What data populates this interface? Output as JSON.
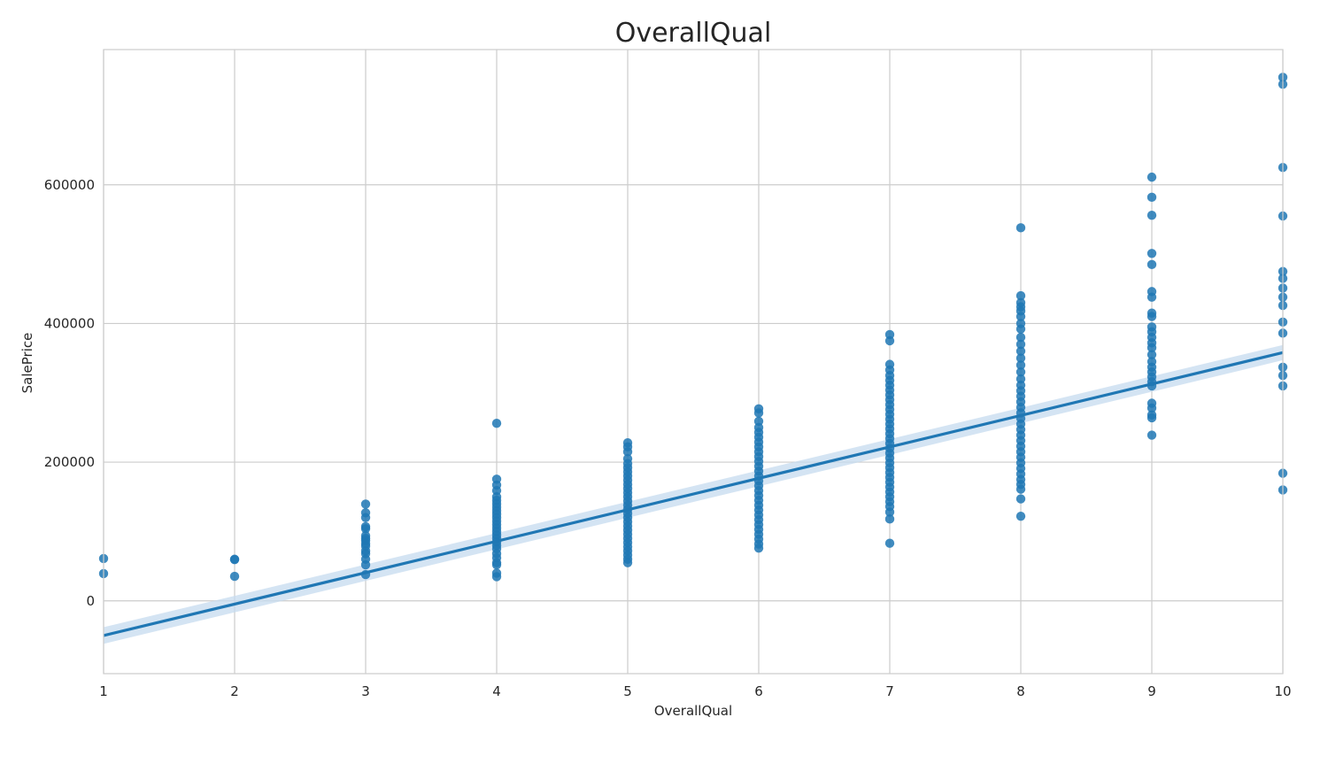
{
  "chart_data": {
    "type": "scatter",
    "title": "OverallQual",
    "xlabel": "OverallQual",
    "ylabel": "SalePrice",
    "xlim": [
      1,
      10
    ],
    "ylim": [
      -105000,
      795000
    ],
    "xticks": [
      "1",
      "2",
      "3",
      "4",
      "5",
      "6",
      "7",
      "8",
      "9",
      "10"
    ],
    "yticks": [
      "0",
      "200000",
      "400000",
      "600000"
    ],
    "grid": true,
    "colors": {
      "points": "#1f77b4",
      "line": "#1f77b4",
      "band": "#c6dbef"
    },
    "regression": {
      "x": [
        1,
        10
      ],
      "y": [
        -50000,
        358000
      ],
      "ci_halfwidth": [
        12000,
        11000
      ]
    },
    "points": [
      {
        "x": 1,
        "y": 61000
      },
      {
        "x": 1,
        "y": 39300
      },
      {
        "x": 2,
        "y": 60000
      },
      {
        "x": 2,
        "y": 59500
      },
      {
        "x": 2,
        "y": 35300
      },
      {
        "x": 3,
        "y": 139600
      },
      {
        "x": 3,
        "y": 127000
      },
      {
        "x": 3,
        "y": 120000
      },
      {
        "x": 3,
        "y": 107000
      },
      {
        "x": 3,
        "y": 104000
      },
      {
        "x": 3,
        "y": 94000
      },
      {
        "x": 3,
        "y": 90000
      },
      {
        "x": 3,
        "y": 87000
      },
      {
        "x": 3,
        "y": 82500
      },
      {
        "x": 3,
        "y": 79000
      },
      {
        "x": 3,
        "y": 72000
      },
      {
        "x": 3,
        "y": 68000
      },
      {
        "x": 3,
        "y": 60000
      },
      {
        "x": 3,
        "y": 52000
      },
      {
        "x": 3,
        "y": 37900
      },
      {
        "x": 4,
        "y": 256000
      },
      {
        "x": 4,
        "y": 175500
      },
      {
        "x": 4,
        "y": 167000
      },
      {
        "x": 4,
        "y": 159000
      },
      {
        "x": 4,
        "y": 150000
      },
      {
        "x": 4,
        "y": 145000
      },
      {
        "x": 4,
        "y": 140000
      },
      {
        "x": 4,
        "y": 135000
      },
      {
        "x": 4,
        "y": 130000
      },
      {
        "x": 4,
        "y": 125000
      },
      {
        "x": 4,
        "y": 120000
      },
      {
        "x": 4,
        "y": 115000
      },
      {
        "x": 4,
        "y": 110000
      },
      {
        "x": 4,
        "y": 105000
      },
      {
        "x": 4,
        "y": 100000
      },
      {
        "x": 4,
        "y": 95000
      },
      {
        "x": 4,
        "y": 90000
      },
      {
        "x": 4,
        "y": 85000
      },
      {
        "x": 4,
        "y": 80000
      },
      {
        "x": 4,
        "y": 75000
      },
      {
        "x": 4,
        "y": 68000
      },
      {
        "x": 4,
        "y": 62000
      },
      {
        "x": 4,
        "y": 55000
      },
      {
        "x": 4,
        "y": 52000
      },
      {
        "x": 4,
        "y": 40000
      },
      {
        "x": 4,
        "y": 34900
      },
      {
        "x": 5,
        "y": 228000
      },
      {
        "x": 5,
        "y": 222000
      },
      {
        "x": 5,
        "y": 215000
      },
      {
        "x": 5,
        "y": 205000
      },
      {
        "x": 5,
        "y": 198000
      },
      {
        "x": 5,
        "y": 192000
      },
      {
        "x": 5,
        "y": 186000
      },
      {
        "x": 5,
        "y": 180000
      },
      {
        "x": 5,
        "y": 174000
      },
      {
        "x": 5,
        "y": 168000
      },
      {
        "x": 5,
        "y": 162000
      },
      {
        "x": 5,
        "y": 156000
      },
      {
        "x": 5,
        "y": 150000
      },
      {
        "x": 5,
        "y": 144000
      },
      {
        "x": 5,
        "y": 138000
      },
      {
        "x": 5,
        "y": 132000
      },
      {
        "x": 5,
        "y": 126000
      },
      {
        "x": 5,
        "y": 120000
      },
      {
        "x": 5,
        "y": 114000
      },
      {
        "x": 5,
        "y": 108000
      },
      {
        "x": 5,
        "y": 102000
      },
      {
        "x": 5,
        "y": 96000
      },
      {
        "x": 5,
        "y": 90000
      },
      {
        "x": 5,
        "y": 84000
      },
      {
        "x": 5,
        "y": 78000
      },
      {
        "x": 5,
        "y": 72000
      },
      {
        "x": 5,
        "y": 66000
      },
      {
        "x": 5,
        "y": 60000
      },
      {
        "x": 5,
        "y": 55000
      },
      {
        "x": 6,
        "y": 277000
      },
      {
        "x": 6,
        "y": 271000
      },
      {
        "x": 6,
        "y": 259000
      },
      {
        "x": 6,
        "y": 250000
      },
      {
        "x": 6,
        "y": 243000
      },
      {
        "x": 6,
        "y": 236000
      },
      {
        "x": 6,
        "y": 229000
      },
      {
        "x": 6,
        "y": 222000
      },
      {
        "x": 6,
        "y": 215000
      },
      {
        "x": 6,
        "y": 208000
      },
      {
        "x": 6,
        "y": 201000
      },
      {
        "x": 6,
        "y": 194000
      },
      {
        "x": 6,
        "y": 187000
      },
      {
        "x": 6,
        "y": 180000
      },
      {
        "x": 6,
        "y": 173000
      },
      {
        "x": 6,
        "y": 166000
      },
      {
        "x": 6,
        "y": 159000
      },
      {
        "x": 6,
        "y": 152000
      },
      {
        "x": 6,
        "y": 145000
      },
      {
        "x": 6,
        "y": 138000
      },
      {
        "x": 6,
        "y": 131000
      },
      {
        "x": 6,
        "y": 124000
      },
      {
        "x": 6,
        "y": 117000
      },
      {
        "x": 6,
        "y": 110000
      },
      {
        "x": 6,
        "y": 103000
      },
      {
        "x": 6,
        "y": 96000
      },
      {
        "x": 6,
        "y": 89000
      },
      {
        "x": 6,
        "y": 82000
      },
      {
        "x": 6,
        "y": 76000
      },
      {
        "x": 7,
        "y": 384000
      },
      {
        "x": 7,
        "y": 375000
      },
      {
        "x": 7,
        "y": 341000
      },
      {
        "x": 7,
        "y": 333000
      },
      {
        "x": 7,
        "y": 325000
      },
      {
        "x": 7,
        "y": 318000
      },
      {
        "x": 7,
        "y": 311000
      },
      {
        "x": 7,
        "y": 304000
      },
      {
        "x": 7,
        "y": 297000
      },
      {
        "x": 7,
        "y": 290000
      },
      {
        "x": 7,
        "y": 283000
      },
      {
        "x": 7,
        "y": 276000
      },
      {
        "x": 7,
        "y": 269000
      },
      {
        "x": 7,
        "y": 262000
      },
      {
        "x": 7,
        "y": 255000
      },
      {
        "x": 7,
        "y": 248000
      },
      {
        "x": 7,
        "y": 241000
      },
      {
        "x": 7,
        "y": 234000
      },
      {
        "x": 7,
        "y": 227000
      },
      {
        "x": 7,
        "y": 220000
      },
      {
        "x": 7,
        "y": 213000
      },
      {
        "x": 7,
        "y": 206000
      },
      {
        "x": 7,
        "y": 199000
      },
      {
        "x": 7,
        "y": 192000
      },
      {
        "x": 7,
        "y": 185000
      },
      {
        "x": 7,
        "y": 178000
      },
      {
        "x": 7,
        "y": 171000
      },
      {
        "x": 7,
        "y": 164000
      },
      {
        "x": 7,
        "y": 157000
      },
      {
        "x": 7,
        "y": 150000
      },
      {
        "x": 7,
        "y": 143000
      },
      {
        "x": 7,
        "y": 136000
      },
      {
        "x": 7,
        "y": 128000
      },
      {
        "x": 7,
        "y": 118000
      },
      {
        "x": 7,
        "y": 83000
      },
      {
        "x": 8,
        "y": 538000
      },
      {
        "x": 8,
        "y": 440000
      },
      {
        "x": 8,
        "y": 430000
      },
      {
        "x": 8,
        "y": 424000
      },
      {
        "x": 8,
        "y": 418000
      },
      {
        "x": 8,
        "y": 410000
      },
      {
        "x": 8,
        "y": 400000
      },
      {
        "x": 8,
        "y": 392000
      },
      {
        "x": 8,
        "y": 380000
      },
      {
        "x": 8,
        "y": 370000
      },
      {
        "x": 8,
        "y": 360000
      },
      {
        "x": 8,
        "y": 350000
      },
      {
        "x": 8,
        "y": 340000
      },
      {
        "x": 8,
        "y": 330000
      },
      {
        "x": 8,
        "y": 320000
      },
      {
        "x": 8,
        "y": 311000
      },
      {
        "x": 8,
        "y": 303000
      },
      {
        "x": 8,
        "y": 295000
      },
      {
        "x": 8,
        "y": 287000
      },
      {
        "x": 8,
        "y": 279000
      },
      {
        "x": 8,
        "y": 271000
      },
      {
        "x": 8,
        "y": 263000
      },
      {
        "x": 8,
        "y": 255000
      },
      {
        "x": 8,
        "y": 247000
      },
      {
        "x": 8,
        "y": 239000
      },
      {
        "x": 8,
        "y": 231000
      },
      {
        "x": 8,
        "y": 223000
      },
      {
        "x": 8,
        "y": 215000
      },
      {
        "x": 8,
        "y": 207000
      },
      {
        "x": 8,
        "y": 199000
      },
      {
        "x": 8,
        "y": 191000
      },
      {
        "x": 8,
        "y": 183000
      },
      {
        "x": 8,
        "y": 175000
      },
      {
        "x": 8,
        "y": 168000
      },
      {
        "x": 8,
        "y": 161000
      },
      {
        "x": 8,
        "y": 147000
      },
      {
        "x": 8,
        "y": 122000
      },
      {
        "x": 9,
        "y": 611000
      },
      {
        "x": 9,
        "y": 582000
      },
      {
        "x": 9,
        "y": 556000
      },
      {
        "x": 9,
        "y": 501000
      },
      {
        "x": 9,
        "y": 485000
      },
      {
        "x": 9,
        "y": 446000
      },
      {
        "x": 9,
        "y": 438000
      },
      {
        "x": 9,
        "y": 415000
      },
      {
        "x": 9,
        "y": 410000
      },
      {
        "x": 9,
        "y": 395000
      },
      {
        "x": 9,
        "y": 388000
      },
      {
        "x": 9,
        "y": 380000
      },
      {
        "x": 9,
        "y": 372000
      },
      {
        "x": 9,
        "y": 365000
      },
      {
        "x": 9,
        "y": 355000
      },
      {
        "x": 9,
        "y": 345000
      },
      {
        "x": 9,
        "y": 337000
      },
      {
        "x": 9,
        "y": 330000
      },
      {
        "x": 9,
        "y": 323000
      },
      {
        "x": 9,
        "y": 316000
      },
      {
        "x": 9,
        "y": 310000
      },
      {
        "x": 9,
        "y": 285000
      },
      {
        "x": 9,
        "y": 278000
      },
      {
        "x": 9,
        "y": 268000
      },
      {
        "x": 9,
        "y": 264000
      },
      {
        "x": 9,
        "y": 239000
      },
      {
        "x": 10,
        "y": 755000
      },
      {
        "x": 10,
        "y": 745000
      },
      {
        "x": 10,
        "y": 625000
      },
      {
        "x": 10,
        "y": 555000
      },
      {
        "x": 10,
        "y": 475000
      },
      {
        "x": 10,
        "y": 465000
      },
      {
        "x": 10,
        "y": 451000
      },
      {
        "x": 10,
        "y": 438000
      },
      {
        "x": 10,
        "y": 426000
      },
      {
        "x": 10,
        "y": 402000
      },
      {
        "x": 10,
        "y": 386000
      },
      {
        "x": 10,
        "y": 337000
      },
      {
        "x": 10,
        "y": 325000
      },
      {
        "x": 10,
        "y": 310000
      },
      {
        "x": 10,
        "y": 184000
      },
      {
        "x": 10,
        "y": 160000
      }
    ]
  }
}
